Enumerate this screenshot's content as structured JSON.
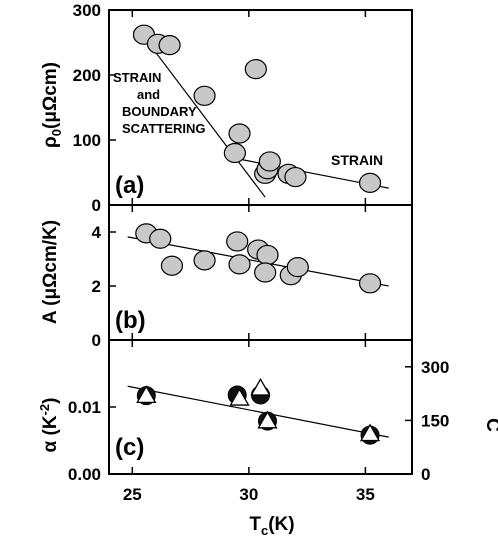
{
  "chart_data": [
    {
      "panel": "(a)",
      "type": "scatter",
      "ylabel": "ρ0(μΩcm)",
      "ylim": [
        0,
        300
      ],
      "yticks": [
        "0",
        "100",
        "200",
        "300"
      ],
      "xlim": [
        24,
        37
      ],
      "annotations": [
        "STRAIN",
        "and",
        "BOUNDARY",
        "SCATTERING",
        "STRAIN"
      ],
      "points": [
        {
          "x": 25.5,
          "y": 262
        },
        {
          "x": 26.1,
          "y": 248
        },
        {
          "x": 26.6,
          "y": 246
        },
        {
          "x": 28.1,
          "y": 168
        },
        {
          "x": 29.4,
          "y": 80
        },
        {
          "x": 29.6,
          "y": 110
        },
        {
          "x": 30.3,
          "y": 209
        },
        {
          "x": 30.7,
          "y": 48
        },
        {
          "x": 30.8,
          "y": 55
        },
        {
          "x": 30.9,
          "y": 67
        },
        {
          "x": 31.7,
          "y": 48
        },
        {
          "x": 32.0,
          "y": 43
        },
        {
          "x": 35.2,
          "y": 34
        }
      ],
      "fit_lines": [
        {
          "x": [
            25.2,
            30.7
          ],
          "y": [
            273,
            12
          ]
        },
        {
          "x": [
            29.1,
            36.0
          ],
          "y": [
            74,
            26
          ]
        }
      ]
    },
    {
      "panel": "(b)",
      "type": "scatter",
      "ylabel": "A (μΩcm/K)",
      "ylim": [
        0,
        5
      ],
      "yticks": [
        "0",
        "2",
        "4"
      ],
      "xlim": [
        24,
        37
      ],
      "points": [
        {
          "x": 25.6,
          "y": 3.95
        },
        {
          "x": 26.2,
          "y": 3.75
        },
        {
          "x": 26.7,
          "y": 2.75
        },
        {
          "x": 28.1,
          "y": 2.95
        },
        {
          "x": 29.5,
          "y": 3.65
        },
        {
          "x": 29.6,
          "y": 2.8
        },
        {
          "x": 30.4,
          "y": 3.35
        },
        {
          "x": 30.8,
          "y": 3.15
        },
        {
          "x": 30.7,
          "y": 2.5
        },
        {
          "x": 31.8,
          "y": 2.4
        },
        {
          "x": 32.1,
          "y": 2.7
        },
        {
          "x": 35.2,
          "y": 2.1
        }
      ],
      "fit_lines": [
        {
          "x": [
            24.8,
            36.0
          ],
          "y": [
            3.82,
            2.0
          ]
        }
      ]
    },
    {
      "panel": "(c)",
      "type": "scatter",
      "ylabel": "α (K-2)",
      "ylim": [
        0.0,
        0.02
      ],
      "yticks": [
        "0.00",
        "0.01"
      ],
      "y2label": "C",
      "y2lim": [
        0,
        375
      ],
      "y2ticks": [
        "0",
        "150",
        "300"
      ],
      "xlabel": "Tc(K)",
      "xlim": [
        24,
        37
      ],
      "xticks": [
        "25",
        "30",
        "35"
      ],
      "series": [
        {
          "marker": "circle",
          "points": [
            {
              "x": 25.6,
              "y": 0.0117
            },
            {
              "x": 29.5,
              "y": 0.0118
            },
            {
              "x": 30.5,
              "y": 0.0118
            },
            {
              "x": 30.8,
              "y": 0.0079
            },
            {
              "x": 35.2,
              "y": 0.0058
            }
          ]
        },
        {
          "marker": "triangle",
          "points": [
            {
              "x": 25.6,
              "y": 0.0117
            },
            {
              "x": 29.6,
              "y": 0.0113
            },
            {
              "x": 30.5,
              "y": 0.0128
            },
            {
              "x": 30.8,
              "y": 0.0079
            },
            {
              "x": 35.2,
              "y": 0.006
            }
          ]
        }
      ],
      "fit_lines": [
        {
          "x": [
            24.8,
            36.0
          ],
          "y": [
            0.0131,
            0.0055
          ]
        }
      ]
    }
  ],
  "colors": {
    "marker_fill": "#c8c8c8",
    "ink": "#000000"
  }
}
